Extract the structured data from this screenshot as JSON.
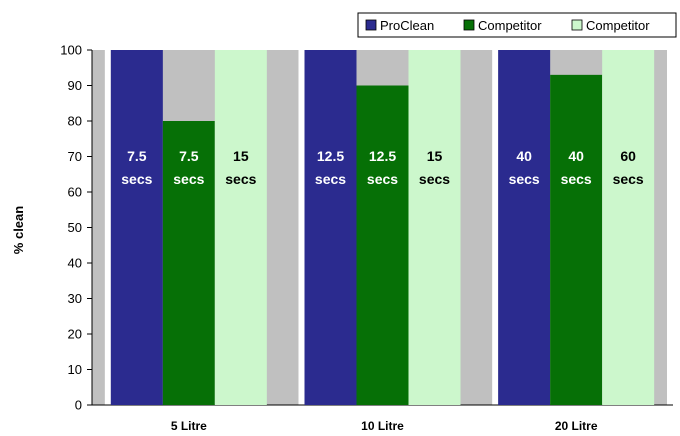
{
  "chart_data": {
    "type": "bar",
    "title": "",
    "xlabel": "",
    "ylabel": "% clean",
    "ylim": [
      0,
      100
    ],
    "yticks": [
      0,
      10,
      20,
      30,
      40,
      50,
      60,
      70,
      80,
      90,
      100
    ],
    "grid": false,
    "legend_position": "top-right",
    "categories": [
      "5 Litre",
      "10 Litre",
      "20 Litre"
    ],
    "series": [
      {
        "name": "ProClean",
        "color": "#2b2b8f",
        "label_color": "#ffffff",
        "values": [
          100,
          100,
          100
        ],
        "labels": [
          [
            "7.5",
            "secs"
          ],
          [
            "12.5",
            "secs"
          ],
          [
            "40",
            "secs"
          ]
        ]
      },
      {
        "name": "Competitor",
        "color": "#067006",
        "label_color": "#ffffff",
        "values": [
          80,
          90,
          93
        ],
        "labels": [
          [
            "7.5",
            "secs"
          ],
          [
            "12.5",
            "secs"
          ],
          [
            "40",
            "secs"
          ]
        ]
      },
      {
        "name": "Competitor",
        "color": "#ccf7cc",
        "label_color": "#000000",
        "values": [
          100,
          100,
          100
        ],
        "labels": [
          [
            "15",
            "secs"
          ],
          [
            "15",
            "secs"
          ],
          [
            "60",
            "secs"
          ]
        ]
      }
    ],
    "plot_background": "#c0c0c0",
    "stripe_color": "#ffffff"
  }
}
